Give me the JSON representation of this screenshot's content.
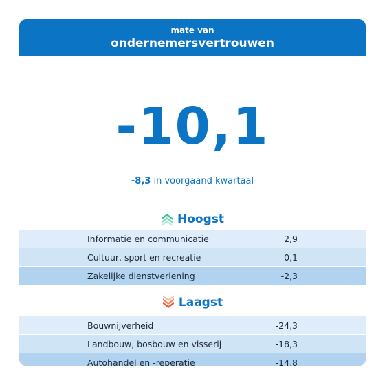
{
  "header": {
    "subtitle": "mate van",
    "title": "ondernemersvertrouwen"
  },
  "main": {
    "value": "-10,1",
    "previous_value": "-8,3",
    "previous_text": "in voorgaand kwartaal"
  },
  "highest": {
    "label": "Hoogst",
    "icon": "chevrons-up-icon",
    "color": "#3cc49a",
    "rows": [
      {
        "name": "Informatie en communicatie",
        "value": "2,9"
      },
      {
        "name": "Cultuur, sport en recreatie",
        "value": "0,1"
      },
      {
        "name": "Zakelijke dienstverlening",
        "value": "-2,3"
      }
    ]
  },
  "lowest": {
    "label": "Laagst",
    "icon": "chevrons-down-icon",
    "color": "#e8593a",
    "rows": [
      {
        "name": "Bouwnijverheid",
        "value": "-24,3"
      },
      {
        "name": "Landbouw, bosbouw en visserij",
        "value": "-18,3"
      },
      {
        "name": "Autohandel en -reperatie",
        "value": "-14,8"
      }
    ]
  },
  "colors": {
    "brand_blue": "#0b74c4",
    "row_light": "#deedf9",
    "row_mid": "#cfe4f5",
    "row_dark": "#b1d3ef"
  }
}
